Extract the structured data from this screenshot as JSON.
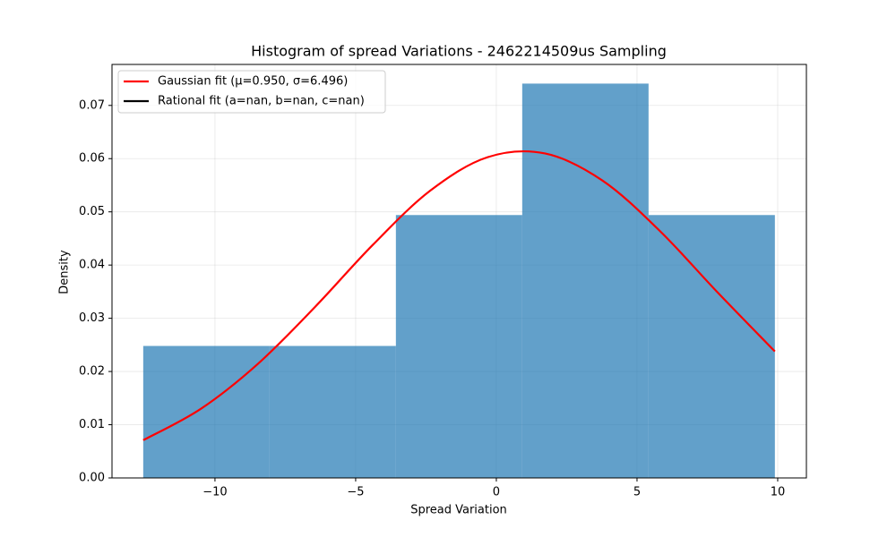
{
  "chart_data": {
    "type": "histogram",
    "title": "Histogram of spread Variations - 2462214509us Sampling",
    "x_label": "Spread Variation",
    "y_label": "Density",
    "bins": [
      -12.55,
      -8.06,
      -3.57,
      0.92,
      5.41,
      9.9
    ],
    "values": [
      0.0248,
      0.0248,
      0.0494,
      0.0741,
      0.0494
    ],
    "color": "#1f77b4",
    "alpha": 0.7,
    "xlim": [
      -13.66,
      11.02
    ],
    "ylim": [
      0,
      0.0777
    ],
    "xticks": [
      {
        "value": -10,
        "label": "−10"
      },
      {
        "value": -5,
        "label": "−5"
      },
      0,
      5,
      10
    ],
    "yticks": [
      {
        "value": 0,
        "label": "0.00"
      },
      {
        "value": 0.01,
        "label": "0.01"
      },
      {
        "value": 0.02,
        "label": "0.02"
      },
      {
        "value": 0.03,
        "label": "0.03"
      },
      {
        "value": 0.04,
        "label": "0.04"
      },
      {
        "value": 0.05,
        "label": "0.05"
      },
      {
        "value": 0.06,
        "label": "0.06"
      },
      {
        "value": 0.07,
        "label": "0.07"
      }
    ],
    "grid": true,
    "legend": "upper left",
    "curves": [
      {
        "name": "Gaussian fit (μ=0.950, σ=6.496)",
        "color": "#ff0000",
        "x": [
          -12.55,
          -10.51,
          -8.47,
          -6.43,
          -4.39,
          -2.35,
          -0.31,
          1.73,
          3.77,
          5.81,
          7.85,
          9.9
        ],
        "values": [
          0.00709,
          0.01296,
          0.02146,
          0.03221,
          0.0438,
          0.05398,
          0.06027,
          0.06097,
          0.05589,
          0.04642,
          0.03494,
          0.02377
        ]
      },
      {
        "name": "Rational fit (a=nan, b=nan, c=nan)",
        "color": "#000000",
        "x": [
          -12.55,
          -10.51,
          -8.47,
          -6.43,
          -4.39,
          -2.35,
          -0.31,
          1.73,
          3.77,
          5.81,
          7.85,
          9.9
        ],
        "values": [
          null,
          null,
          null,
          null,
          null,
          null,
          null,
          null,
          null,
          null,
          null,
          null
        ]
      }
    ]
  }
}
